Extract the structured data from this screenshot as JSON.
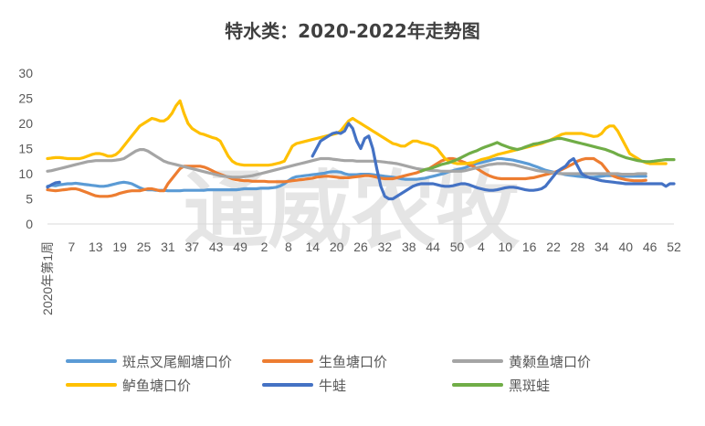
{
  "chart_data": {
    "type": "line",
    "title": "特水类：2020-2022年走势图",
    "watermark": "通威农牧",
    "ylim": [
      0,
      30
    ],
    "yticks": [
      "0",
      "5",
      "10",
      "15",
      "20",
      "25",
      "30"
    ],
    "xlabel": "",
    "ylabel": "",
    "x_tick_labels": [
      "2020年第1周",
      "7",
      "13",
      "19",
      "25",
      "31",
      "37",
      "43",
      "49",
      "2",
      "8",
      "14",
      "20",
      "26",
      "32",
      "38",
      "44",
      "50",
      "4",
      "10",
      "16",
      "22",
      "28",
      "34",
      "40",
      "46",
      "52"
    ],
    "grid": false,
    "legend_position": "bottom",
    "series": [
      {
        "name": "斑点叉尾鮰塘口价",
        "color": "#5b9bd5",
        "start_index": 0,
        "values": [
          7.5,
          7.7,
          7.6,
          7.8,
          7.9,
          8.0,
          8.0,
          8.1,
          8.0,
          7.9,
          7.8,
          7.7,
          7.6,
          7.5,
          7.5,
          7.6,
          7.8,
          8.0,
          8.2,
          8.3,
          8.2,
          8.0,
          7.6,
          7.2,
          6.9,
          6.8,
          6.8,
          6.7,
          6.7,
          6.7,
          6.6,
          6.6,
          6.6,
          6.6,
          6.7,
          6.7,
          6.7,
          6.7,
          6.7,
          6.7,
          6.8,
          6.8,
          6.8,
          6.8,
          6.8,
          6.8,
          6.8,
          6.8,
          6.9,
          7.0,
          7.0,
          7.0,
          7.0,
          7.1,
          7.1,
          7.1,
          7.2,
          7.3,
          7.6,
          8.0,
          8.6,
          9.1,
          9.4,
          9.5,
          9.6,
          9.7,
          9.8,
          9.9,
          10.0,
          10.1,
          10.3,
          10.4,
          10.4,
          10.3,
          10.0,
          9.8,
          9.8,
          9.8,
          9.9,
          9.9,
          9.9,
          9.8,
          9.7,
          9.6,
          9.5,
          9.4,
          9.3,
          9.2,
          9.0,
          8.9,
          8.9,
          8.9,
          8.9,
          9.0,
          9.1,
          9.3,
          9.5,
          9.7,
          9.9,
          10.1,
          10.4,
          10.6,
          10.8,
          11.0,
          11.2,
          11.5,
          11.8,
          12.0,
          12.2,
          12.4,
          12.6,
          12.8,
          13.0,
          13.0,
          12.9,
          12.8,
          12.7,
          12.5,
          12.3,
          12.1,
          11.9,
          11.6,
          11.3,
          11.0,
          10.7,
          10.5,
          10.3,
          10.1,
          10.0,
          9.8,
          9.7,
          9.6,
          9.5,
          9.4,
          9.3,
          9.3,
          9.3,
          9.4,
          9.5,
          9.6,
          9.6,
          9.6,
          9.6,
          9.5,
          9.5,
          9.5,
          9.5,
          9.5,
          9.5,
          9.5
        ]
      },
      {
        "name": "生鱼塘口价",
        "color": "#ed7d31",
        "start_index": 0,
        "values": [
          6.8,
          6.7,
          6.6,
          6.7,
          6.8,
          6.9,
          7.0,
          7.0,
          6.8,
          6.5,
          6.2,
          5.9,
          5.6,
          5.5,
          5.5,
          5.5,
          5.6,
          5.8,
          6.1,
          6.3,
          6.5,
          6.6,
          6.6,
          6.6,
          6.8,
          7.0,
          7.0,
          6.8,
          6.6,
          6.6,
          8.0,
          9.0,
          10.0,
          11.0,
          11.5,
          11.5,
          11.5,
          11.5,
          11.5,
          11.3,
          11.0,
          10.6,
          10.2,
          9.9,
          9.6,
          9.3,
          9.0,
          8.8,
          8.7,
          8.6,
          8.6,
          8.5,
          8.5,
          8.5,
          8.5,
          8.4,
          8.4,
          8.4,
          8.4,
          8.4,
          8.5,
          8.6,
          8.7,
          8.8,
          8.9,
          9.0,
          9.1,
          9.3,
          9.4,
          9.5,
          9.5,
          9.4,
          9.3,
          9.2,
          9.2,
          9.2,
          9.3,
          9.4,
          9.5,
          9.6,
          9.6,
          9.5,
          9.3,
          9.1,
          9.0,
          9.0,
          9.0,
          9.2,
          9.4,
          9.6,
          9.8,
          10.0,
          10.2,
          10.5,
          10.8,
          11.0,
          11.5,
          12.0,
          12.5,
          12.8,
          13.0,
          13.0,
          12.8,
          12.5,
          12.2,
          11.8,
          11.5,
          11.0,
          10.5,
          10.0,
          9.6,
          9.3,
          9.1,
          9.0,
          9.0,
          9.0,
          9.0,
          9.0,
          9.0,
          9.0,
          9.1,
          9.2,
          9.4,
          9.6,
          9.8,
          10.0,
          10.2,
          10.5,
          10.8,
          11.2,
          11.6,
          12.0,
          12.5,
          12.8,
          13.0,
          13.0,
          13.0,
          12.5,
          12.0,
          11.0,
          10.0,
          9.5,
          9.2,
          9.0,
          8.8,
          8.7,
          8.6,
          8.6,
          8.6,
          8.7
        ]
      },
      {
        "name": "黄颡鱼塘口价",
        "color": "#a5a5a5",
        "start_index": 0,
        "values": [
          10.5,
          10.6,
          10.8,
          11.0,
          11.2,
          11.4,
          11.6,
          11.8,
          12.0,
          12.2,
          12.4,
          12.5,
          12.6,
          12.6,
          12.6,
          12.6,
          12.6,
          12.7,
          12.8,
          13.0,
          13.5,
          14.0,
          14.5,
          14.8,
          14.8,
          14.5,
          14.0,
          13.5,
          13.0,
          12.5,
          12.2,
          12.0,
          11.8,
          11.6,
          11.4,
          11.2,
          11.0,
          10.8,
          10.6,
          10.4,
          10.2,
          10.0,
          9.8,
          9.6,
          9.5,
          9.4,
          9.3,
          9.3,
          9.3,
          9.4,
          9.5,
          9.6,
          9.8,
          10.0,
          10.2,
          10.4,
          10.6,
          10.8,
          11.0,
          11.2,
          11.4,
          11.6,
          11.8,
          12.0,
          12.2,
          12.4,
          12.6,
          12.8,
          13.0,
          13.0,
          13.0,
          12.9,
          12.8,
          12.7,
          12.6,
          12.6,
          12.6,
          12.5,
          12.5,
          12.5,
          12.5,
          12.5,
          12.5,
          12.4,
          12.3,
          12.2,
          12.1,
          12.0,
          11.8,
          11.6,
          11.4,
          11.2,
          11.0,
          10.9,
          10.8,
          10.7,
          10.6,
          10.6,
          10.5,
          10.5,
          10.5,
          10.5,
          10.5,
          10.5,
          10.6,
          10.8,
          11.0,
          11.2,
          11.4,
          11.6,
          11.8,
          11.9,
          12.0,
          12.0,
          12.0,
          11.9,
          11.8,
          11.6,
          11.4,
          11.2,
          11.0,
          10.8,
          10.6,
          10.5,
          10.4,
          10.3,
          10.2,
          10.1,
          10.0,
          10.0,
          10.0,
          10.0,
          10.0,
          10.0,
          10.0,
          10.0,
          10.0,
          10.0,
          10.0,
          10.0,
          10.0,
          10.0,
          10.0,
          9.9,
          9.9,
          9.9,
          9.9,
          10.0,
          10.0,
          10.0
        ]
      },
      {
        "name": "鲈鱼塘口价",
        "color": "#ffc000",
        "start_index": 0,
        "values": [
          13.0,
          13.1,
          13.2,
          13.2,
          13.1,
          13.0,
          13.0,
          13.0,
          13.0,
          13.2,
          13.5,
          13.8,
          14.0,
          14.0,
          13.8,
          13.5,
          13.5,
          13.8,
          14.5,
          15.5,
          16.5,
          17.5,
          18.5,
          19.5,
          20.0,
          20.5,
          21.0,
          20.8,
          20.5,
          20.5,
          21.0,
          22.0,
          23.5,
          24.5,
          22.0,
          20.0,
          19.0,
          18.5,
          18.0,
          17.8,
          17.5,
          17.2,
          17.0,
          16.5,
          15.0,
          13.5,
          12.5,
          12.0,
          11.8,
          11.7,
          11.7,
          11.7,
          11.7,
          11.7,
          11.7,
          11.7,
          11.8,
          12.0,
          12.2,
          12.5,
          14.0,
          15.5,
          16.0,
          16.2,
          16.4,
          16.6,
          16.8,
          17.0,
          17.2,
          17.4,
          17.6,
          17.8,
          18.0,
          18.5,
          19.5,
          20.5,
          21.0,
          20.5,
          20.0,
          19.5,
          19.0,
          18.5,
          18.0,
          17.5,
          17.0,
          16.5,
          16.0,
          15.8,
          15.5,
          15.5,
          16.0,
          16.5,
          16.5,
          16.2,
          16.0,
          15.8,
          15.5,
          15.0,
          14.0,
          13.0,
          12.5,
          12.2,
          12.0,
          12.0,
          12.0,
          12.1,
          12.2,
          12.5,
          12.8,
          13.0,
          13.2,
          13.5,
          13.8,
          14.0,
          14.2,
          14.4,
          14.6,
          14.8,
          15.0,
          15.2,
          15.4,
          15.6,
          15.8,
          16.0,
          16.3,
          16.6,
          17.0,
          17.4,
          17.8,
          18.0,
          18.0,
          18.0,
          18.0,
          18.0,
          17.8,
          17.6,
          17.4,
          17.5,
          18.0,
          19.0,
          19.5,
          19.5,
          18.5,
          17.0,
          15.5,
          14.0,
          13.5,
          13.0,
          12.5,
          12.2,
          12.0,
          12.0,
          12.0,
          12.0,
          12.0
        ]
      },
      {
        "name": "牛蛙",
        "color": "#4472c4",
        "start_index": 0,
        "values": [
          7.3,
          7.8,
          8.2,
          8.3,
          null,
          null,
          null,
          null,
          null,
          null,
          null,
          null,
          null,
          null,
          null,
          null,
          null,
          null,
          null,
          null,
          null,
          null,
          null,
          null,
          null,
          null,
          null,
          null,
          null,
          null,
          null,
          null,
          null,
          null,
          null,
          null,
          null,
          null,
          null,
          null,
          null,
          null,
          null,
          null,
          null,
          null,
          null,
          null,
          null,
          null,
          null,
          null,
          null,
          null,
          null,
          null,
          null,
          null,
          null,
          null,
          null,
          null,
          null,
          null,
          null,
          null,
          13.5,
          15.0,
          16.5,
          17.0,
          17.5,
          18.0,
          18.2,
          18.0,
          18.5,
          20.0,
          19.0,
          16.5,
          15.0,
          17.0,
          17.5,
          15.0,
          11.0,
          7.5,
          5.5,
          5.0,
          5.0,
          5.5,
          6.0,
          6.5,
          7.0,
          7.5,
          7.8,
          8.0,
          8.0,
          8.0,
          8.0,
          7.8,
          7.6,
          7.5,
          7.5,
          7.6,
          7.8,
          8.0,
          8.0,
          7.8,
          7.5,
          7.2,
          7.0,
          6.8,
          6.7,
          6.7,
          6.8,
          7.0,
          7.2,
          7.3,
          7.3,
          7.2,
          7.0,
          6.8,
          6.7,
          6.7,
          6.8,
          7.0,
          7.5,
          8.5,
          9.5,
          10.5,
          11.0,
          11.5,
          12.5,
          13.0,
          11.5,
          10.0,
          9.5,
          9.2,
          9.0,
          8.8,
          8.6,
          8.5,
          8.4,
          8.3,
          8.2,
          8.1,
          8.0,
          8.0,
          8.0,
          8.0,
          8.0,
          8.0,
          8.0,
          8.0,
          8.0,
          8.0,
          7.5,
          8.0,
          8.0
        ]
      },
      {
        "name": "黑斑蛙",
        "color": "#70ad47",
        "start_index": 93,
        "values": [
          10.5,
          10.8,
          11.0,
          11.2,
          11.5,
          11.8,
          12.0,
          12.2,
          12.5,
          12.8,
          13.2,
          13.6,
          14.0,
          14.3,
          14.6,
          15.0,
          15.3,
          15.6,
          15.9,
          16.2,
          15.8,
          15.5,
          15.2,
          15.0,
          14.8,
          15.0,
          15.3,
          15.6,
          15.9,
          16.0,
          16.2,
          16.4,
          16.6,
          16.8,
          17.0,
          17.0,
          16.8,
          16.6,
          16.4,
          16.2,
          16.0,
          15.8,
          15.6,
          15.4,
          15.2,
          15.0,
          14.8,
          14.5,
          14.2,
          13.8,
          13.5,
          13.2,
          13.0,
          12.8,
          12.6,
          12.5,
          12.4,
          12.4,
          12.5,
          12.6,
          12.7,
          12.8,
          12.8,
          12.8
        ]
      }
    ]
  }
}
